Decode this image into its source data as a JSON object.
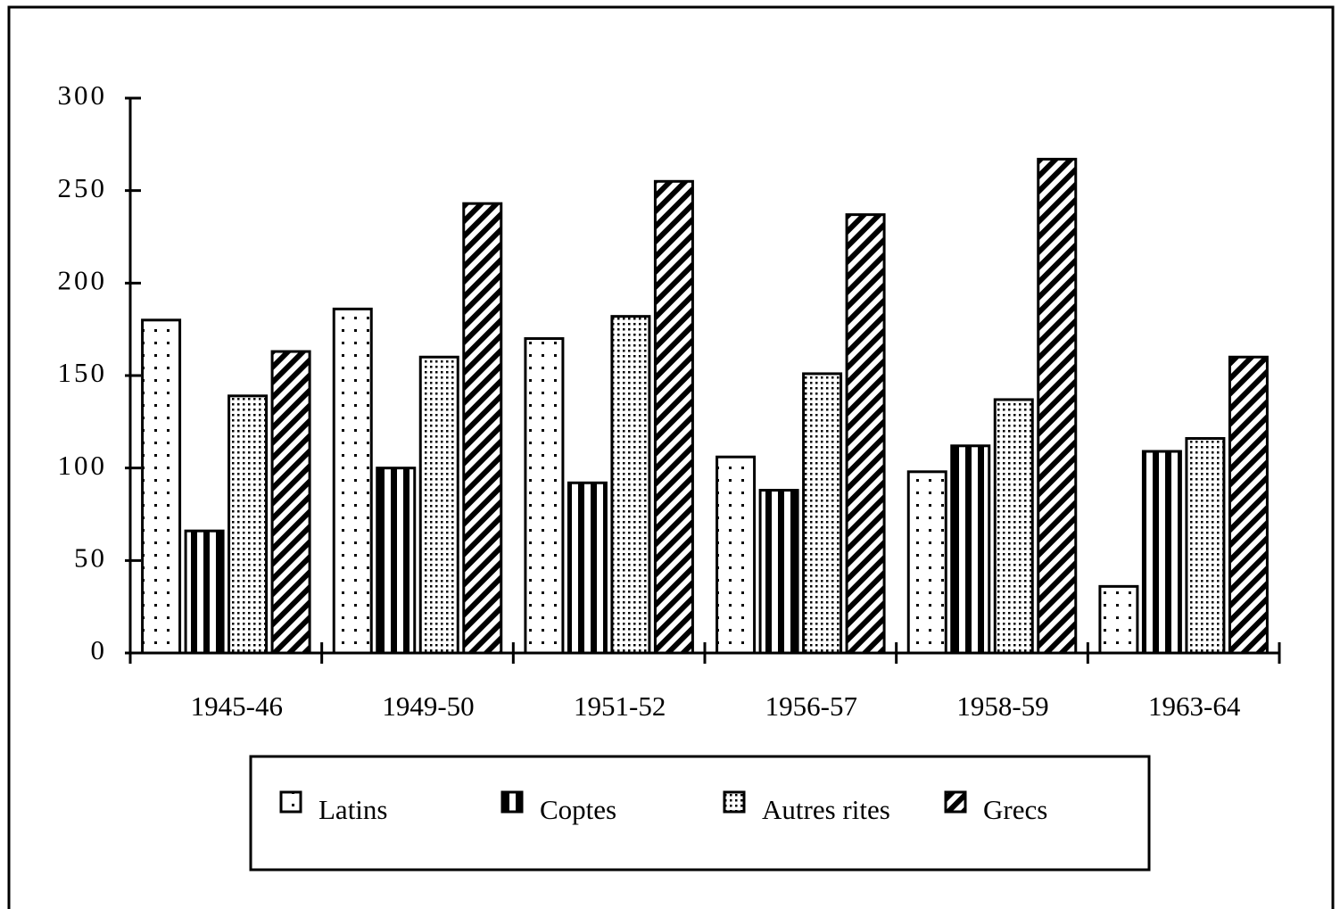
{
  "chart_data": {
    "type": "bar",
    "categories": [
      "1945-46",
      "1949-50",
      "1951-52",
      "1956-57",
      "1958-59",
      "1963-64"
    ],
    "series": [
      {
        "name": "Latins",
        "color": "#000000",
        "pattern": "dots",
        "values": [
          180,
          186,
          170,
          106,
          98,
          36
        ]
      },
      {
        "name": "Coptes",
        "color": "#000000",
        "pattern": "vertical",
        "values": [
          66,
          100,
          92,
          88,
          112,
          109
        ]
      },
      {
        "name": "Autres rites",
        "color": "#000000",
        "pattern": "fine-dots",
        "values": [
          139,
          160,
          182,
          151,
          137,
          116
        ]
      },
      {
        "name": "Grecs",
        "color": "#000000",
        "pattern": "diagonal",
        "values": [
          163,
          243,
          255,
          237,
          267,
          160
        ]
      }
    ],
    "ylim": [
      0,
      300
    ],
    "yticks": [
      0,
      50,
      100,
      150,
      200,
      250,
      300
    ],
    "grid": false,
    "legend": "bottom"
  }
}
